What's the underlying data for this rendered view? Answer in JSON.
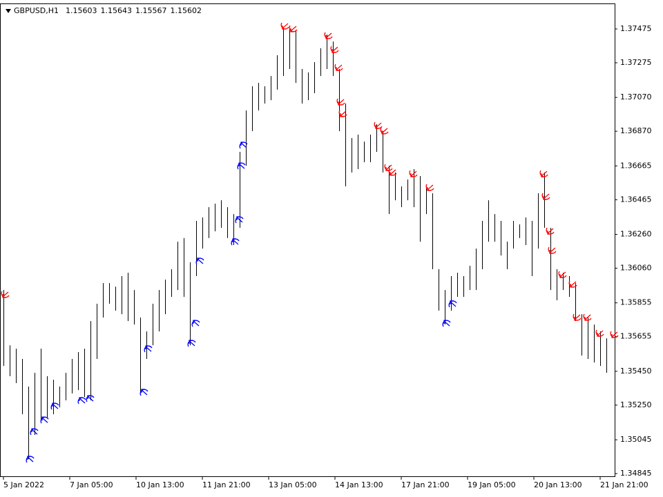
{
  "chart_data": {
    "type": "bar",
    "title": "GBPUSD,H1",
    "quote": [
      1.15603,
      1.15643,
      1.15567,
      1.15602
    ],
    "ylim": [
      1.34829,
      1.37626
    ],
    "yticks": [
      1.37475,
      1.37275,
      {
        "value": 1.3707,
        "label": "1.37070"
      },
      {
        "value": 1.3687,
        "label": "1.36870"
      },
      1.36665,
      1.36465,
      {
        "value": 1.3626,
        "label": "1.36260"
      },
      {
        "value": 1.3606,
        "label": "1.36060"
      },
      1.35855,
      1.35655,
      {
        "value": 1.3545,
        "label": "1.35450"
      },
      {
        "value": 1.3525,
        "label": "1.35250"
      },
      1.35045,
      1.34845
    ],
    "xlim": [
      -1.5,
      295
    ],
    "xticks": [
      {
        "value": 0,
        "label": "5 Jan 2022"
      },
      {
        "value": 32,
        "label": "7 Jan 05:00"
      },
      {
        "value": 64,
        "label": "10 Jan 13:00"
      },
      {
        "value": 96,
        "label": "11 Jan 21:00"
      },
      {
        "value": 128,
        "label": "13 Jan 05:00"
      },
      {
        "value": 160,
        "label": "14 Jan 13:00"
      },
      {
        "value": 192,
        "label": "17 Jan 21:00"
      },
      {
        "value": 224,
        "label": "19 Jan 05:00"
      },
      {
        "value": 256,
        "label": "20 Jan 13:00"
      },
      {
        "value": 288,
        "label": "21 Jan 21:00"
      }
    ],
    "bars": {
      "color": "#000000",
      "x": [
        0,
        3,
        6,
        9,
        12,
        15,
        18,
        21,
        24,
        27,
        30,
        33,
        36,
        39,
        42,
        45,
        48,
        51,
        54,
        57,
        60,
        63,
        66,
        69,
        72,
        75,
        78,
        81,
        84,
        87,
        90,
        93,
        96,
        99,
        102,
        105,
        108,
        111,
        114,
        117,
        120,
        123,
        126,
        129,
        132,
        135,
        138,
        141,
        144,
        147,
        150,
        153,
        156,
        159,
        162,
        165,
        168,
        171,
        174,
        177,
        180,
        183,
        186,
        189,
        192,
        195,
        198,
        201,
        204,
        207,
        210,
        213,
        216,
        219,
        222,
        225,
        228,
        231,
        234,
        237,
        240,
        243,
        246,
        249,
        252,
        255,
        258,
        261,
        264,
        267,
        270,
        273,
        276,
        279,
        282,
        285,
        288,
        291
      ],
      "high": [
        1.35931,
        1.35604,
        1.35584,
        1.35523,
        1.3536,
        1.35441,
        1.35584,
        1.35421,
        1.354,
        1.3536,
        1.35441,
        1.35523,
        1.35564,
        1.35584,
        1.35747,
        1.3585,
        1.35972,
        1.35972,
        1.35951,
        1.36013,
        1.36033,
        1.35931,
        1.35768,
        1.35686,
        1.3585,
        1.35931,
        1.35992,
        1.36054,
        1.36217,
        1.36238,
        1.36095,
        1.3634,
        1.3636,
        1.36421,
        1.36442,
        1.36462,
        1.36421,
        1.3638,
        1.36748,
        1.36993,
        1.37136,
        1.37156,
        1.37136,
        1.37197,
        1.3732,
        1.37483,
        1.37483,
        1.37463,
        1.37238,
        1.37218,
        1.37279,
        1.37361,
        1.37442,
        1.37401,
        1.37238,
        1.37034,
        1.3683,
        1.3685,
        1.36809,
        1.3685,
        1.36911,
        1.36871,
        1.36666,
        1.36626,
        1.36544,
        1.36585,
        1.36646,
        1.36605,
        1.36544,
        1.36503,
        1.36054,
        1.35931,
        1.36013,
        1.36033,
        1.36013,
        1.36074,
        1.36176,
        1.3634,
        1.36462,
        1.3638,
        1.3634,
        1.36217,
        1.3634,
        1.36319,
        1.3636,
        1.3634,
        1.36503,
        1.36626,
        1.36299,
        1.36054,
        1.36033,
        1.36013,
        1.35972,
        1.35788,
        1.35768,
        1.35727,
        1.35686,
        1.35645
      ],
      "low": [
        1.35482,
        1.35421,
        1.3538,
        1.35196,
        1.34931,
        1.35074,
        1.35155,
        1.35176,
        1.35196,
        1.35237,
        1.35278,
        1.35319,
        1.35339,
        1.35298,
        1.35278,
        1.35523,
        1.35768,
        1.3585,
        1.35809,
        1.35788,
        1.35747,
        1.35727,
        1.35319,
        1.35523,
        1.35604,
        1.35686,
        1.35788,
        1.3589,
        1.35931,
        1.3589,
        1.35604,
        1.36013,
        1.36176,
        1.36238,
        1.36278,
        1.36299,
        1.36238,
        1.36197,
        1.36299,
        1.36666,
        1.36871,
        1.36993,
        1.37034,
        1.37054,
        1.37116,
        1.37197,
        1.37238,
        1.37156,
        1.37034,
        1.37054,
        1.37095,
        1.37197,
        1.37238,
        1.37197,
        1.36871,
        1.36544,
        1.36626,
        1.36646,
        1.36687,
        1.36687,
        1.36748,
        1.36626,
        1.3638,
        1.36462,
        1.36421,
        1.36462,
        1.36421,
        1.36217,
        1.3638,
        1.36054,
        1.35809,
        1.35727,
        1.35809,
        1.3589,
        1.3589,
        1.35931,
        1.35931,
        1.36054,
        1.36217,
        1.36217,
        1.36135,
        1.36054,
        1.36176,
        1.36238,
        1.36197,
        1.36013,
        1.36176,
        1.36299,
        1.35931,
        1.3587,
        1.35931,
        1.3589,
        1.35747,
        1.35543,
        1.35523,
        1.35502,
        1.35482,
        1.35441
      ]
    },
    "signals": [
      {
        "color": "#0000ff",
        "direction": "up",
        "x": [
          13,
          15,
          20,
          25,
          38,
          42,
          68,
          70,
          91,
          93,
          95,
          112,
          114,
          115,
          116,
          214,
          217
        ],
        "values": [
          1.34931,
          1.35094,
          1.35163,
          1.35245,
          1.35278,
          1.3529,
          1.35327,
          1.35584,
          1.35617,
          1.35735,
          1.36103,
          1.36217,
          1.36348,
          1.36666,
          1.36789,
          1.35735,
          1.3585
        ]
      },
      {
        "color": "#ff0000",
        "direction": "down",
        "x": [
          1,
          136,
          140,
          157,
          160,
          162,
          163,
          164,
          181,
          184,
          186,
          188,
          198,
          206,
          261,
          262,
          264,
          265,
          270,
          275,
          277,
          282,
          288,
          295
        ],
        "values": [
          1.35903,
          1.37491,
          1.37475,
          1.37434,
          1.37352,
          1.37246,
          1.37042,
          1.36973,
          1.36903,
          1.36871,
          1.36654,
          1.36626,
          1.36617,
          1.36536,
          1.36617,
          1.36483,
          1.36278,
          1.36164,
          1.36021,
          1.35964,
          1.35768,
          1.35768,
          1.35674,
          1.35666
        ]
      }
    ]
  }
}
